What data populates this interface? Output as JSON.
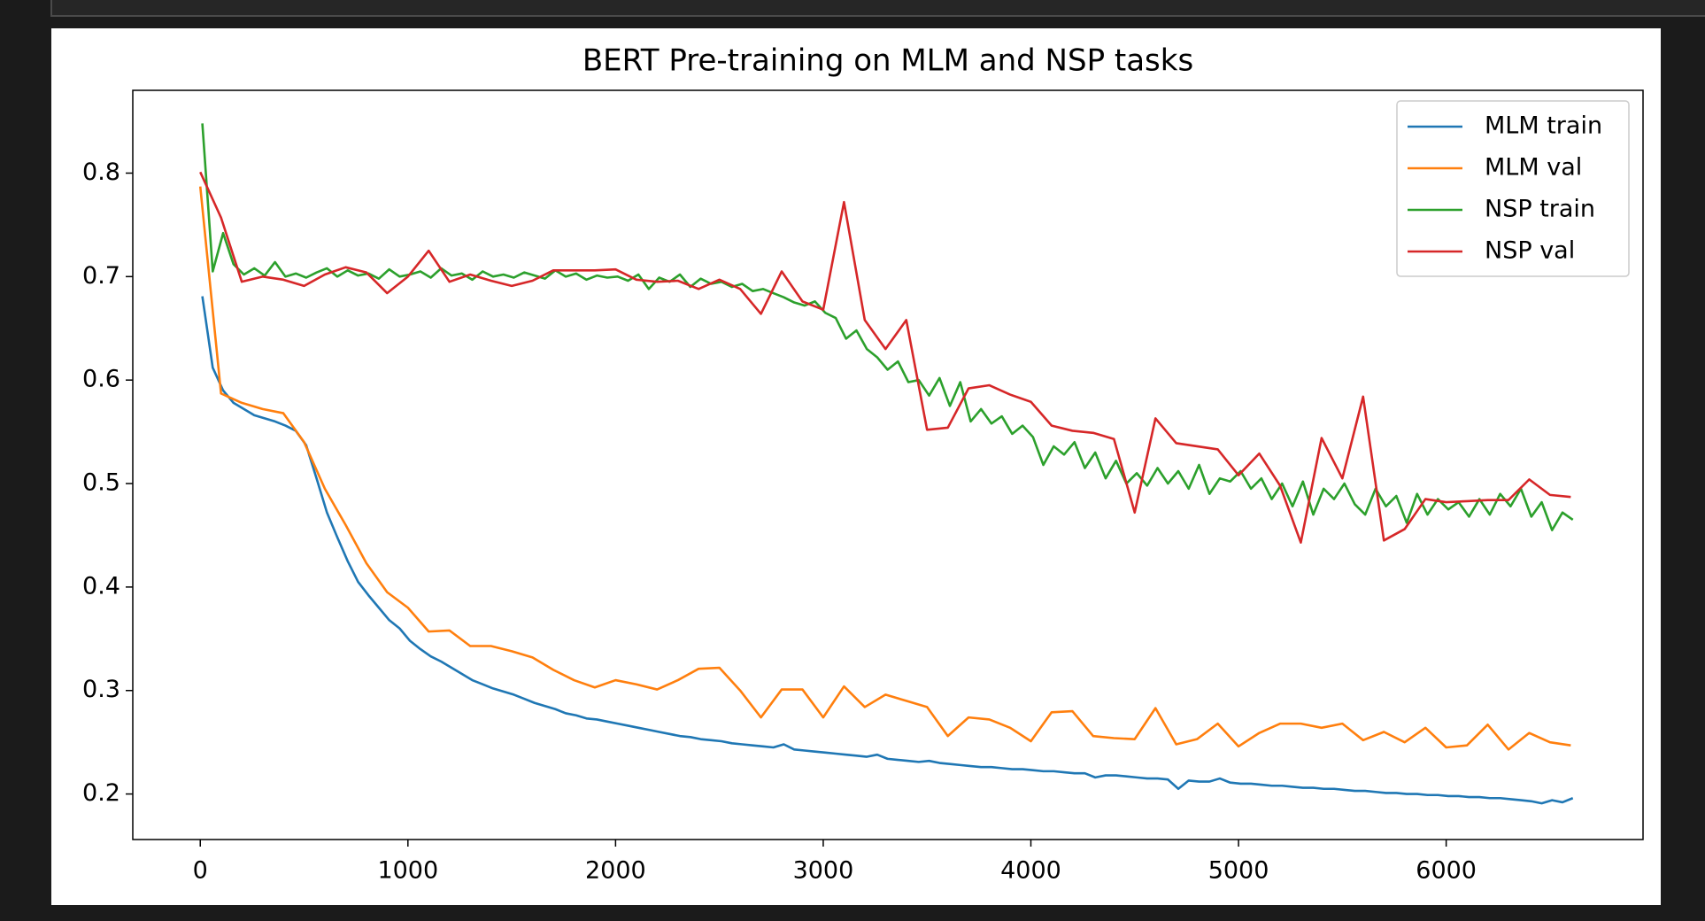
{
  "chart_data": {
    "type": "line",
    "title": "BERT Pre-training on MLM and NSP tasks",
    "xlim": [
      -325,
      6948
    ],
    "ylim": [
      0.156,
      0.88
    ],
    "xticks": [
      0,
      1000,
      2000,
      3000,
      4000,
      5000,
      6000
    ],
    "yticks": [
      0.2,
      0.3,
      0.4,
      0.5,
      0.6,
      0.7,
      0.8
    ],
    "grid": false,
    "legend": "upper right",
    "series": [
      {
        "name": "MLM train",
        "color": "#1f77b4",
        "x": [
          10,
          60,
          110,
          160,
          210,
          260,
          310,
          360,
          410,
          460,
          510,
          560,
          610,
          660,
          710,
          760,
          810,
          860,
          910,
          960,
          1010,
          1060,
          1110,
          1160,
          1210,
          1260,
          1310,
          1360,
          1410,
          1460,
          1510,
          1560,
          1610,
          1660,
          1710,
          1760,
          1810,
          1860,
          1910,
          1960,
          2010,
          2060,
          2110,
          2160,
          2210,
          2260,
          2310,
          2360,
          2410,
          2460,
          2510,
          2560,
          2610,
          2660,
          2710,
          2760,
          2810,
          2860,
          2910,
          2960,
          3010,
          3060,
          3110,
          3160,
          3210,
          3260,
          3310,
          3360,
          3410,
          3460,
          3510,
          3560,
          3610,
          3660,
          3710,
          3760,
          3810,
          3860,
          3910,
          3960,
          4010,
          4060,
          4110,
          4160,
          4210,
          4260,
          4310,
          4360,
          4410,
          4460,
          4510,
          4560,
          4610,
          4660,
          4710,
          4760,
          4810,
          4860,
          4910,
          4960,
          5010,
          5060,
          5110,
          5160,
          5210,
          5260,
          5310,
          5360,
          5410,
          5460,
          5510,
          5560,
          5610,
          5660,
          5710,
          5760,
          5810,
          5860,
          5910,
          5960,
          6010,
          6060,
          6110,
          6160,
          6210,
          6260,
          6310,
          6360,
          6410,
          6460,
          6510,
          6560,
          6610
        ],
        "values": [
          0.681,
          0.612,
          0.59,
          0.578,
          0.572,
          0.566,
          0.563,
          0.56,
          0.556,
          0.551,
          0.537,
          0.505,
          0.472,
          0.448,
          0.425,
          0.405,
          0.392,
          0.38,
          0.368,
          0.36,
          0.348,
          0.34,
          0.333,
          0.328,
          0.322,
          0.316,
          0.31,
          0.306,
          0.302,
          0.299,
          0.296,
          0.292,
          0.288,
          0.285,
          0.282,
          0.278,
          0.276,
          0.273,
          0.272,
          0.27,
          0.268,
          0.266,
          0.264,
          0.262,
          0.26,
          0.258,
          0.256,
          0.255,
          0.253,
          0.252,
          0.251,
          0.249,
          0.248,
          0.247,
          0.246,
          0.245,
          0.248,
          0.243,
          0.242,
          0.241,
          0.24,
          0.239,
          0.238,
          0.237,
          0.236,
          0.238,
          0.234,
          0.233,
          0.232,
          0.231,
          0.232,
          0.23,
          0.229,
          0.228,
          0.227,
          0.226,
          0.226,
          0.225,
          0.224,
          0.224,
          0.223,
          0.222,
          0.222,
          0.221,
          0.22,
          0.22,
          0.216,
          0.218,
          0.218,
          0.217,
          0.216,
          0.215,
          0.215,
          0.214,
          0.205,
          0.213,
          0.212,
          0.212,
          0.215,
          0.211,
          0.21,
          0.21,
          0.209,
          0.208,
          0.208,
          0.207,
          0.206,
          0.206,
          0.205,
          0.205,
          0.204,
          0.203,
          0.203,
          0.202,
          0.201,
          0.201,
          0.2,
          0.2,
          0.199,
          0.199,
          0.198,
          0.198,
          0.197,
          0.197,
          0.196,
          0.196,
          0.195,
          0.194,
          0.193,
          0.191,
          0.194,
          0.192,
          0.196
        ]
      },
      {
        "name": "MLM val",
        "color": "#ff7f0e",
        "x": [
          0,
          100,
          200,
          300,
          400,
          500,
          600,
          700,
          800,
          900,
          1000,
          1100,
          1200,
          1300,
          1400,
          1500,
          1600,
          1700,
          1800,
          1900,
          2000,
          2100,
          2200,
          2300,
          2400,
          2500,
          2600,
          2700,
          2800,
          2900,
          3000,
          3100,
          3200,
          3300,
          3400,
          3500,
          3600,
          3700,
          3800,
          3900,
          4000,
          4100,
          4200,
          4300,
          4400,
          4500,
          4600,
          4700,
          4800,
          4900,
          5000,
          5100,
          5200,
          5300,
          5400,
          5500,
          5600,
          5700,
          5800,
          5900,
          6000,
          6100,
          6200,
          6300,
          6400,
          6500,
          6600
        ],
        "values": [
          0.787,
          0.587,
          0.578,
          0.572,
          0.568,
          0.54,
          0.495,
          0.46,
          0.423,
          0.395,
          0.38,
          0.357,
          0.358,
          0.343,
          0.343,
          0.338,
          0.332,
          0.32,
          0.31,
          0.303,
          0.31,
          0.306,
          0.301,
          0.31,
          0.321,
          0.322,
          0.3,
          0.274,
          0.301,
          0.301,
          0.274,
          0.304,
          0.284,
          0.296,
          0.29,
          0.284,
          0.256,
          0.274,
          0.272,
          0.264,
          0.251,
          0.279,
          0.28,
          0.256,
          0.254,
          0.253,
          0.283,
          0.248,
          0.253,
          0.268,
          0.246,
          0.259,
          0.268,
          0.268,
          0.264,
          0.268,
          0.252,
          0.26,
          0.25,
          0.264,
          0.245,
          0.247,
          0.267,
          0.243,
          0.259,
          0.25,
          0.247
        ]
      },
      {
        "name": "NSP train",
        "color": "#2ca02c",
        "x": [
          10,
          60,
          110,
          160,
          210,
          260,
          310,
          360,
          410,
          460,
          510,
          560,
          610,
          660,
          710,
          760,
          810,
          860,
          910,
          960,
          1010,
          1060,
          1110,
          1160,
          1210,
          1260,
          1310,
          1360,
          1410,
          1460,
          1510,
          1560,
          1610,
          1660,
          1710,
          1760,
          1810,
          1860,
          1910,
          1960,
          2010,
          2060,
          2110,
          2160,
          2210,
          2260,
          2310,
          2360,
          2410,
          2460,
          2510,
          2560,
          2610,
          2660,
          2710,
          2760,
          2810,
          2860,
          2910,
          2960,
          3010,
          3060,
          3110,
          3160,
          3210,
          3260,
          3310,
          3360,
          3410,
          3460,
          3510,
          3560,
          3610,
          3660,
          3710,
          3760,
          3810,
          3860,
          3910,
          3960,
          4010,
          4060,
          4110,
          4160,
          4210,
          4260,
          4310,
          4360,
          4410,
          4460,
          4510,
          4560,
          4610,
          4660,
          4710,
          4760,
          4810,
          4860,
          4910,
          4960,
          5010,
          5060,
          5110,
          5160,
          5210,
          5260,
          5310,
          5360,
          5410,
          5460,
          5510,
          5560,
          5610,
          5660,
          5710,
          5760,
          5810,
          5860,
          5910,
          5960,
          6010,
          6060,
          6110,
          6160,
          6210,
          6260,
          6310,
          6360,
          6410,
          6460,
          6510,
          6560,
          6610
        ],
        "values": [
          0.848,
          0.705,
          0.742,
          0.712,
          0.702,
          0.708,
          0.701,
          0.714,
          0.7,
          0.703,
          0.699,
          0.704,
          0.708,
          0.7,
          0.706,
          0.701,
          0.703,
          0.698,
          0.707,
          0.7,
          0.702,
          0.705,
          0.699,
          0.708,
          0.701,
          0.703,
          0.697,
          0.705,
          0.7,
          0.702,
          0.699,
          0.704,
          0.701,
          0.698,
          0.706,
          0.7,
          0.703,
          0.697,
          0.701,
          0.699,
          0.7,
          0.696,
          0.702,
          0.688,
          0.699,
          0.695,
          0.702,
          0.69,
          0.698,
          0.693,
          0.695,
          0.69,
          0.693,
          0.686,
          0.688,
          0.684,
          0.68,
          0.675,
          0.672,
          0.676,
          0.665,
          0.66,
          0.64,
          0.648,
          0.63,
          0.622,
          0.61,
          0.618,
          0.598,
          0.6,
          0.585,
          0.602,
          0.575,
          0.598,
          0.56,
          0.572,
          0.558,
          0.565,
          0.548,
          0.556,
          0.545,
          0.518,
          0.536,
          0.528,
          0.54,
          0.515,
          0.53,
          0.505,
          0.522,
          0.5,
          0.51,
          0.498,
          0.515,
          0.5,
          0.512,
          0.495,
          0.518,
          0.49,
          0.505,
          0.502,
          0.512,
          0.495,
          0.505,
          0.485,
          0.5,
          0.478,
          0.502,
          0.47,
          0.495,
          0.485,
          0.5,
          0.48,
          0.47,
          0.495,
          0.478,
          0.488,
          0.462,
          0.49,
          0.47,
          0.485,
          0.475,
          0.482,
          0.468,
          0.485,
          0.47,
          0.49,
          0.478,
          0.495,
          0.468,
          0.482,
          0.455,
          0.472,
          0.465
        ]
      },
      {
        "name": "NSP val",
        "color": "#d62728",
        "x": [
          0,
          100,
          200,
          300,
          400,
          500,
          600,
          700,
          800,
          900,
          1000,
          1100,
          1200,
          1300,
          1400,
          1500,
          1600,
          1700,
          1800,
          1900,
          2000,
          2100,
          2200,
          2300,
          2400,
          2500,
          2600,
          2700,
          2800,
          2900,
          3000,
          3100,
          3200,
          3300,
          3400,
          3500,
          3600,
          3700,
          3800,
          3900,
          4000,
          4100,
          4200,
          4300,
          4400,
          4500,
          4600,
          4700,
          4800,
          4900,
          5000,
          5100,
          5200,
          5300,
          5400,
          5500,
          5600,
          5700,
          5800,
          5900,
          6000,
          6100,
          6200,
          6300,
          6400,
          6500,
          6600
        ],
        "values": [
          0.801,
          0.757,
          0.695,
          0.7,
          0.697,
          0.691,
          0.702,
          0.709,
          0.704,
          0.684,
          0.7,
          0.725,
          0.695,
          0.702,
          0.696,
          0.691,
          0.696,
          0.706,
          0.706,
          0.706,
          0.707,
          0.697,
          0.695,
          0.696,
          0.688,
          0.697,
          0.688,
          0.664,
          0.705,
          0.676,
          0.668,
          0.772,
          0.658,
          0.63,
          0.658,
          0.552,
          0.554,
          0.592,
          0.595,
          0.586,
          0.579,
          0.556,
          0.551,
          0.549,
          0.543,
          0.472,
          0.563,
          0.539,
          0.536,
          0.533,
          0.508,
          0.529,
          0.498,
          0.443,
          0.544,
          0.505,
          0.584,
          0.445,
          0.456,
          0.485,
          0.482,
          0.483,
          0.484,
          0.484,
          0.504,
          0.489,
          0.487
        ]
      }
    ]
  }
}
